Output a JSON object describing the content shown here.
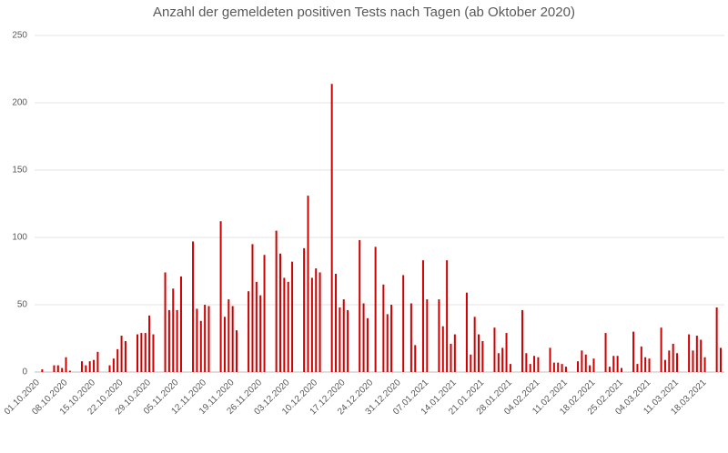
{
  "chart_data": {
    "type": "bar",
    "title": "Anzahl der gemeldeten positiven Tests nach Tagen (ab Oktober 2020)",
    "categories": [
      "01.10.2020",
      null,
      null,
      null,
      null,
      null,
      null,
      "08.10.2020",
      null,
      null,
      null,
      null,
      null,
      null,
      "15.10.2020",
      null,
      null,
      null,
      null,
      null,
      null,
      "22.10.2020",
      null,
      null,
      null,
      null,
      null,
      null,
      "29.10.2020",
      null,
      null,
      null,
      null,
      null,
      null,
      "05.11.2020",
      null,
      null,
      null,
      null,
      null,
      null,
      "12.11.2020",
      null,
      null,
      null,
      null,
      null,
      null,
      "19.11.2020",
      null,
      null,
      null,
      null,
      null,
      null,
      "26.11.2020",
      null,
      null,
      null,
      null,
      null,
      null,
      "03.12.2020",
      null,
      null,
      null,
      null,
      null,
      null,
      "10.12.2020",
      null,
      null,
      null,
      null,
      null,
      null,
      "17.12.2020",
      null,
      null,
      null,
      null,
      null,
      null,
      "24.12.2020",
      null,
      null,
      null,
      null,
      null,
      null,
      "31.12.2020",
      null,
      null,
      null,
      null,
      null,
      null,
      "07.01.2021",
      null,
      null,
      null,
      null,
      null,
      null,
      "14.01.2021",
      null,
      null,
      null,
      null,
      null,
      null,
      "21.01.2021",
      null,
      null,
      null,
      null,
      null,
      null,
      "28.01.2021",
      null,
      null,
      null,
      null,
      null,
      null,
      "04.02.2021",
      null,
      null,
      null,
      null,
      null,
      null,
      "11.02.2021",
      null,
      null,
      null,
      null,
      null,
      null,
      "18.02.2021",
      null,
      null,
      null,
      null,
      null,
      null,
      "25.02.2021",
      null,
      null,
      null,
      null,
      null,
      null,
      "04.03.2021",
      null,
      null,
      null,
      null,
      null,
      null,
      "11.03.2021",
      null,
      null,
      null,
      null,
      null,
      null,
      "18.03.2021",
      null,
      null,
      null,
      null
    ],
    "values": [
      0,
      2,
      0,
      0,
      5,
      5,
      3,
      11,
      1,
      0,
      0,
      8,
      5,
      8,
      9,
      15,
      0,
      0,
      5,
      10,
      17,
      27,
      23,
      0,
      0,
      28,
      29,
      29,
      42,
      28,
      0,
      0,
      74,
      46,
      62,
      46,
      71,
      0,
      0,
      97,
      47,
      38,
      50,
      49,
      0,
      0,
      112,
      41,
      54,
      49,
      31,
      0,
      0,
      60,
      95,
      67,
      57,
      87,
      0,
      0,
      105,
      88,
      70,
      67,
      82,
      0,
      0,
      92,
      131,
      70,
      77,
      74,
      0,
      0,
      214,
      73,
      48,
      54,
      46,
      0,
      0,
      98,
      51,
      40,
      0,
      93,
      0,
      65,
      43,
      50,
      0,
      0,
      72,
      0,
      51,
      20,
      0,
      83,
      54,
      0,
      0,
      54,
      34,
      83,
      21,
      28,
      0,
      0,
      59,
      13,
      41,
      28,
      23,
      0,
      0,
      33,
      14,
      18,
      29,
      6,
      0,
      0,
      46,
      14,
      6,
      12,
      11,
      0,
      0,
      18,
      7,
      7,
      6,
      4,
      0,
      0,
      8,
      16,
      13,
      5,
      10,
      0,
      0,
      29,
      4,
      12,
      12,
      3,
      0,
      0,
      30,
      6,
      19,
      11,
      10,
      0,
      0,
      33,
      9,
      16,
      21,
      14,
      0,
      0,
      28,
      16,
      27,
      24,
      11,
      0,
      0,
      48,
      18
    ],
    "color": "#d00000",
    "ylim": [
      0,
      250
    ],
    "yticks": [
      0,
      50,
      100,
      150,
      200,
      250
    ],
    "grid": true
  }
}
